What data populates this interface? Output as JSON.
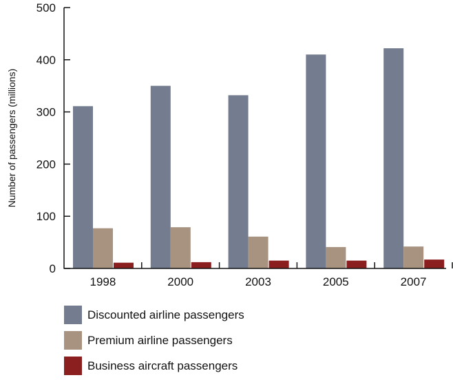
{
  "chart_data": {
    "type": "bar",
    "categories": [
      "1998",
      "2000",
      "2003",
      "2005",
      "2007"
    ],
    "series": [
      {
        "name": "Discounted airline passengers",
        "color": "#737d8f",
        "values": [
          311,
          350,
          332,
          410,
          422
        ]
      },
      {
        "name": "Premium airline passengers",
        "color": "#a89381",
        "values": [
          77,
          79,
          61,
          41,
          42
        ]
      },
      {
        "name": "Business aircraft passengers",
        "color": "#8b1f1f",
        "values": [
          11,
          12,
          15,
          15,
          17
        ]
      }
    ],
    "title": "",
    "xlabel": "",
    "ylabel": "Number of passengers (millions)",
    "ylim": [
      0,
      500
    ],
    "yticks": [
      0,
      100,
      200,
      300,
      400,
      500
    ],
    "grid": false,
    "legend_position": "bottom-left"
  }
}
